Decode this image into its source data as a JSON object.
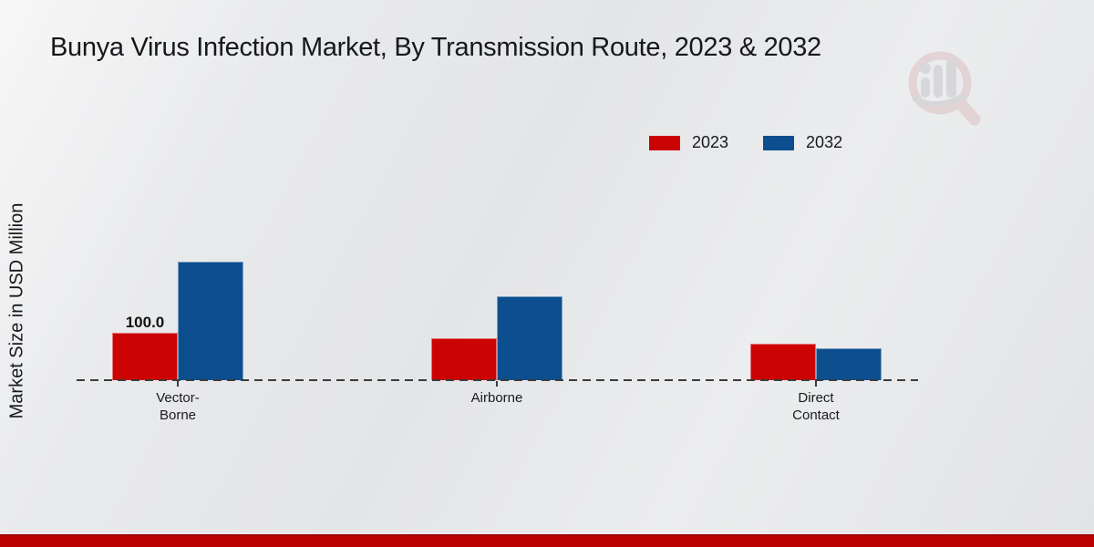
{
  "page": {
    "title": "Bunya Virus Infection Market, By Transmission Route, 2023 & 2032",
    "y_axis_label": "Market Size in USD Million"
  },
  "legend": {
    "items": [
      {
        "label": "2023",
        "color": "#cc0303"
      },
      {
        "label": "2032",
        "color": "#0d4f8e"
      }
    ]
  },
  "chart_data": {
    "type": "bar",
    "title": "Bunya Virus Infection Market, By Transmission Route, 2023 & 2032",
    "xlabel": "",
    "ylabel": "Market Size in USD Million",
    "categories": [
      "Vector-\nBorne",
      "Airborne",
      "Direct\nContact"
    ],
    "series": [
      {
        "name": "2023",
        "color": "#cc0303",
        "values": [
          100.0,
          88,
          77
        ],
        "data_labels": [
          "100.0",
          null,
          null
        ]
      },
      {
        "name": "2032",
        "color": "#0d4f8e",
        "values": [
          250,
          177,
          67
        ],
        "data_labels": [
          null,
          null,
          null
        ]
      }
    ],
    "ylim": [
      0,
      260
    ],
    "grid": false,
    "legend_position": "top-right",
    "x_axis_style": "dashed",
    "data_label_shown": "100.0 on 2023 Vector-Borne bar"
  },
  "branding": {
    "logo_icon": "magnifier-bar-chart-watermark",
    "footer_color": "#bb0202"
  }
}
